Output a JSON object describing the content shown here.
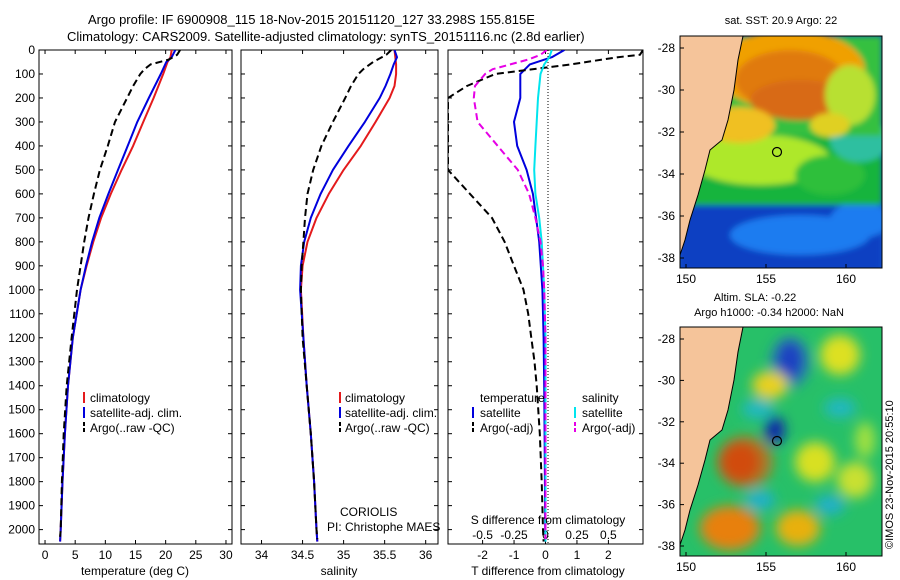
{
  "header": {
    "line1": "Argo profile: IF 6900908_115 18-Nov-2015 20151120_127 33.298S 155.815E",
    "line2": "Climatology: CARS2009. Satellite-adjusted climatology: synTS_20151116.nc (2.8d earlier)"
  },
  "colors": {
    "climatology": "#e41a1c",
    "satellite": "#0000dd",
    "argo": "#000000",
    "sal_satellite": "#00e5ee",
    "sal_argo": "#e600e6",
    "land": "#f5c49a"
  },
  "depth_axis": {
    "ticks": [
      0,
      100,
      200,
      300,
      400,
      500,
      600,
      700,
      800,
      900,
      1000,
      1100,
      1200,
      1300,
      1400,
      1500,
      1600,
      1700,
      1800,
      1900,
      2000
    ],
    "range": [
      0,
      2060
    ]
  },
  "chart_data": [
    {
      "name": "temperature",
      "type": "line",
      "xlabel": "temperature (deg C)",
      "xlim": [
        -1,
        31
      ],
      "xticks": [
        0,
        5,
        10,
        15,
        20,
        25,
        30
      ],
      "ylim": [
        0,
        2060
      ],
      "legend": [
        "climatology",
        "satellite-adj. clim.",
        "Argo(..raw -QC)"
      ],
      "series": [
        {
          "name": "climatology",
          "color": "#e41a1c",
          "style": "solid",
          "depth": [
            0,
            30,
            50,
            100,
            150,
            200,
            300,
            400,
            500,
            600,
            700,
            800,
            900,
            1000,
            1200,
            1400,
            1600,
            1800,
            2000,
            2050
          ],
          "values": [
            21,
            20.8,
            20.3,
            19.6,
            18.8,
            18,
            16.3,
            14.6,
            12.7,
            10.9,
            9.3,
            8,
            6.9,
            5.9,
            4.6,
            3.8,
            3.3,
            2.9,
            2.6,
            2.5
          ]
        },
        {
          "name": "satellite-adj. clim.",
          "color": "#0000dd",
          "style": "solid",
          "depth": [
            0,
            30,
            50,
            100,
            150,
            200,
            300,
            400,
            500,
            600,
            700,
            800,
            900,
            1000,
            1200,
            1400,
            1600,
            1800,
            2000,
            2050
          ],
          "values": [
            21.6,
            21,
            20.1,
            19.2,
            18.2,
            17.2,
            15.3,
            13.7,
            12.1,
            10.5,
            9,
            7.8,
            6.8,
            5.9,
            4.6,
            3.8,
            3.3,
            2.9,
            2.6,
            2.5
          ]
        },
        {
          "name": "Argo(..raw -QC)",
          "color": "#000000",
          "style": "dashed",
          "depth": [
            0,
            20,
            40,
            60,
            80,
            100,
            150,
            200,
            300,
            400,
            500,
            600,
            700,
            800,
            900,
            1000,
            1200,
            1400,
            1600,
            1800,
            2000,
            2030
          ],
          "values": [
            22.4,
            21.9,
            20.5,
            17.5,
            16.5,
            15.8,
            14.6,
            13.6,
            11.6,
            10.4,
            9.1,
            8.1,
            7.2,
            6.5,
            5.9,
            5.3,
            4.4,
            3.6,
            3.1,
            2.8,
            2.6,
            2.5
          ]
        }
      ]
    },
    {
      "name": "salinity",
      "type": "line",
      "xlabel": "salinity",
      "xlim": [
        33.75,
        36.15
      ],
      "xticks": [
        34,
        34.5,
        35,
        35.5,
        36
      ],
      "ylim": [
        0,
        2060
      ],
      "legend": [
        "climatology",
        "satellite-adj. clim.",
        "Argo(..raw -QC)"
      ],
      "footer": [
        "CORIOLIS",
        "PI: Christophe MAES"
      ],
      "series": [
        {
          "name": "climatology",
          "color": "#e41a1c",
          "style": "solid",
          "depth": [
            0,
            30,
            60,
            100,
            150,
            200,
            300,
            400,
            500,
            600,
            700,
            800,
            900,
            1000,
            1200,
            1400,
            1600,
            1800,
            2000,
            2050
          ],
          "values": [
            35.62,
            35.63,
            35.64,
            35.64,
            35.62,
            35.56,
            35.39,
            35.21,
            35,
            34.82,
            34.67,
            34.56,
            34.5,
            34.48,
            34.51,
            34.55,
            34.6,
            34.64,
            34.67,
            34.68
          ]
        },
        {
          "name": "satellite-adj. clim.",
          "color": "#0000dd",
          "style": "solid",
          "depth": [
            0,
            30,
            60,
            100,
            150,
            200,
            300,
            400,
            500,
            600,
            700,
            800,
            900,
            1000,
            1200,
            1400,
            1600,
            1800,
            2000,
            2050
          ],
          "values": [
            35.62,
            35.65,
            35.61,
            35.57,
            35.51,
            35.44,
            35.26,
            35.06,
            34.87,
            34.72,
            34.6,
            34.52,
            34.48,
            34.47,
            34.51,
            34.55,
            34.6,
            34.64,
            34.67,
            34.68
          ]
        },
        {
          "name": "Argo(..raw -QC)",
          "color": "#000000",
          "style": "dashed",
          "depth": [
            0,
            20,
            50,
            80,
            100,
            150,
            200,
            300,
            400,
            500,
            600,
            700,
            800,
            900,
            1000,
            1200,
            1400,
            1600,
            1800,
            2000,
            2040
          ],
          "values": [
            35.58,
            35.52,
            35.36,
            35.24,
            35.18,
            35.09,
            35.02,
            34.87,
            34.73,
            34.63,
            34.56,
            34.53,
            34.51,
            34.49,
            34.48,
            34.5,
            34.55,
            34.6,
            34.64,
            34.67,
            34.68
          ]
        }
      ]
    },
    {
      "name": "difference",
      "type": "line",
      "xlabel": "T difference from climatology",
      "xlabel_top": "S difference from climatology",
      "t_xlim": [
        -3.1,
        3.1
      ],
      "t_xticks": [
        -2,
        -1,
        0,
        1,
        2
      ],
      "s_xticks": [
        -0.5,
        -0.25,
        0,
        0.25,
        0.5
      ],
      "ylim": [
        0,
        2060
      ],
      "legend_titles": [
        "temperature",
        "salinity"
      ],
      "legend_t": [
        "satellite",
        "Argo(-adj)"
      ],
      "legend_s": [
        "satellite",
        "Argo(-adj)"
      ],
      "series": [
        {
          "name": "T satellite",
          "color": "#0000dd",
          "style": "solid",
          "depth": [
            0,
            30,
            60,
            100,
            150,
            200,
            300,
            400,
            500,
            600,
            700,
            800,
            900,
            1000,
            1200,
            1400,
            1600,
            1800,
            2000,
            2050
          ],
          "values": [
            0.6,
            0.2,
            -0.5,
            -0.8,
            -0.8,
            -0.8,
            -1,
            -0.9,
            -0.6,
            -0.4,
            -0.3,
            -0.2,
            -0.15,
            -0.1,
            -0.06,
            -0.04,
            -0.03,
            -0.02,
            -0.01,
            0
          ]
        },
        {
          "name": "T Argo(-adj)",
          "color": "#000000",
          "style": "dashed",
          "depth": [
            0,
            20,
            30,
            60,
            100,
            150,
            200,
            300,
            400,
            500,
            600,
            700,
            800,
            900,
            1000,
            1100,
            1200,
            1300,
            1400,
            1600,
            1800,
            2000,
            2050
          ],
          "values": [
            3.1,
            3.0,
            2.3,
            0.8,
            -1.6,
            -2.5,
            -3.1,
            -3.1,
            -3.1,
            -3.1,
            -2.4,
            -1.7,
            -1.3,
            -1.0,
            -0.7,
            -0.55,
            -0.45,
            -0.35,
            -0.28,
            -0.18,
            -0.12,
            -0.08,
            -0.06
          ]
        },
        {
          "name": "S satellite",
          "color": "#00e5ee",
          "style": "solid",
          "depth": [
            0,
            30,
            60,
            100,
            200,
            300,
            400,
            500,
            600,
            700,
            800,
            900,
            1000,
            1200,
            1400,
            1600,
            1800,
            2000,
            2050
          ],
          "values": [
            0.05,
            0.03,
            -0.01,
            -0.04,
            -0.06,
            -0.07,
            -0.08,
            -0.09,
            -0.08,
            -0.05,
            -0.03,
            -0.02,
            -0.01,
            0,
            0,
            0,
            0,
            0,
            0
          ]
        },
        {
          "name": "S Argo(-adj)",
          "color": "#e600e6",
          "style": "dashed",
          "depth": [
            0,
            20,
            40,
            60,
            80,
            100,
            150,
            200,
            300,
            400,
            500,
            600,
            700,
            800,
            900,
            1000,
            1200,
            1400,
            1600,
            1800,
            2000,
            2040
          ],
          "values": [
            0.01,
            -0.04,
            -0.14,
            -0.28,
            -0.42,
            -0.48,
            -0.56,
            -0.57,
            -0.54,
            -0.38,
            -0.22,
            -0.13,
            -0.08,
            -0.04,
            -0.02,
            -0.01,
            0,
            0,
            0,
            0,
            0,
            0
          ]
        }
      ]
    }
  ],
  "maps": [
    {
      "title": "sat. SST: 20.9 Argo: 22",
      "lon_ticks": [
        "150",
        "155",
        "160"
      ],
      "lat_ticks": [
        "-28",
        "-30",
        "-32",
        "-34",
        "-36",
        "-38"
      ]
    },
    {
      "title1": "Altim. SLA: -0.22",
      "title2": "Argo h1000: -0.34 h2000: NaN",
      "lon_ticks": [
        "150",
        "155",
        "160"
      ],
      "lat_ticks": [
        "-28",
        "-30",
        "-32",
        "-34",
        "-36",
        "-38"
      ]
    }
  ],
  "stamp": "©IMOS 23-Nov-2015 20:55:10"
}
